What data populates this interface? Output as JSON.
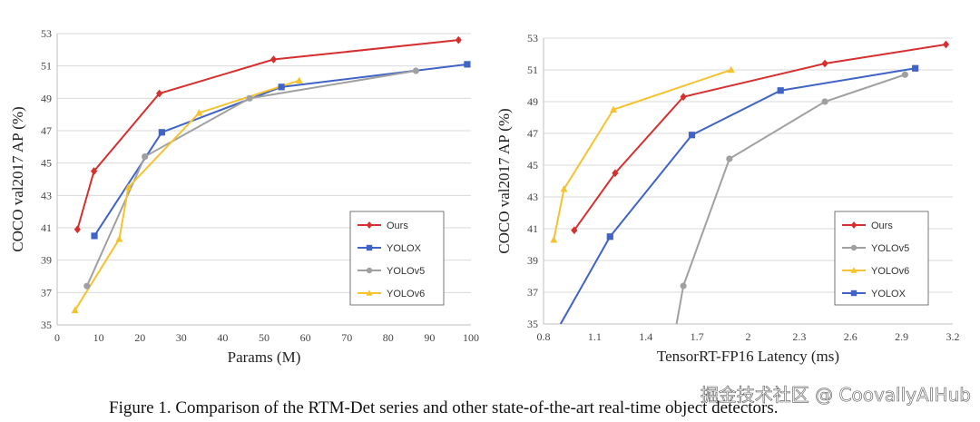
{
  "chart_data": [
    {
      "type": "line",
      "title": "",
      "xlabel": "Params (M)",
      "ylabel": "COCO val2017 AP (%)",
      "xlim": [
        0,
        100
      ],
      "ylim": [
        35,
        53
      ],
      "xticks": [
        0,
        10,
        20,
        30,
        40,
        50,
        60,
        70,
        80,
        90,
        100
      ],
      "yticks": [
        35,
        37,
        39,
        41,
        43,
        45,
        47,
        49,
        51,
        53
      ],
      "grid": true,
      "legend_position": "bottom-right",
      "series": [
        {
          "name": "Ours",
          "color": "#d62f2f",
          "marker": "diamond",
          "x": [
            4.9,
            8.9,
            24.7,
            52.3,
            97
          ],
          "y": [
            40.9,
            44.5,
            49.3,
            51.4,
            52.6
          ]
        },
        {
          "name": "YOLOX",
          "color": "#3f63c6",
          "marker": "square",
          "x": [
            9,
            25.3,
            54.2,
            99.1
          ],
          "y": [
            40.5,
            46.9,
            49.7,
            51.1
          ]
        },
        {
          "name": "YOLOv5",
          "color": "#a0a0a0",
          "marker": "circle",
          "x": [
            7.2,
            21.2,
            46.5,
            86.7
          ],
          "y": [
            37.4,
            45.4,
            49.0,
            50.7
          ]
        },
        {
          "name": "YOLOv6",
          "color": "#f5c230",
          "marker": "triangle",
          "x": [
            4.3,
            15,
            17.2,
            34.3,
            58.5
          ],
          "y": [
            35.9,
            40.3,
            43.5,
            48.1,
            50.1
          ]
        }
      ]
    },
    {
      "type": "line",
      "title": "",
      "xlabel": "TensorRT-FP16 Latency (ms)",
      "ylabel": "COCO val2017 AP (%)",
      "xlim": [
        0.8,
        3.2
      ],
      "ylim": [
        35,
        53
      ],
      "xticks": [
        0.8,
        1.1,
        1.4,
        1.7,
        2.0,
        2.3,
        2.6,
        2.9,
        3.2
      ],
      "xtick_labels": [
        "0.8",
        "1.1",
        "1.4",
        "1.7",
        "2",
        "2.3",
        "2.6",
        "2.9",
        "3.2"
      ],
      "yticks": [
        35,
        37,
        39,
        41,
        43,
        45,
        47,
        49,
        51,
        53
      ],
      "grid": true,
      "legend_position": "bottom-right",
      "series": [
        {
          "name": "Ours",
          "color": "#d62f2f",
          "marker": "diamond",
          "x": [
            0.98,
            1.22,
            1.62,
            2.45,
            3.16
          ],
          "y": [
            40.9,
            44.5,
            49.3,
            51.4,
            52.6
          ]
        },
        {
          "name": "YOLOv5",
          "color": "#a0a0a0",
          "marker": "circle",
          "x": [
            1.58,
            1.62,
            1.89,
            2.45,
            2.92
          ],
          "y": [
            35,
            37.4,
            45.4,
            49.0,
            50.7
          ]
        },
        {
          "name": "YOLOv6",
          "color": "#f5c230",
          "marker": "triangle",
          "x": [
            0.86,
            0.92,
            1.21,
            1.9
          ],
          "y": [
            40.3,
            43.5,
            48.5,
            51.0
          ]
        },
        {
          "name": "YOLOX",
          "color": "#3f63c6",
          "marker": "square",
          "x": [
            0.9,
            1.19,
            1.67,
            2.19,
            2.98
          ],
          "y": [
            35,
            40.5,
            46.9,
            49.7,
            51.1
          ]
        }
      ]
    }
  ],
  "caption": "Figure 1. Comparison of the RTM-Det series and other state-of-the-art real-time object detectors.",
  "watermark": "掘金技术社区 @ CoovallyAIHub"
}
